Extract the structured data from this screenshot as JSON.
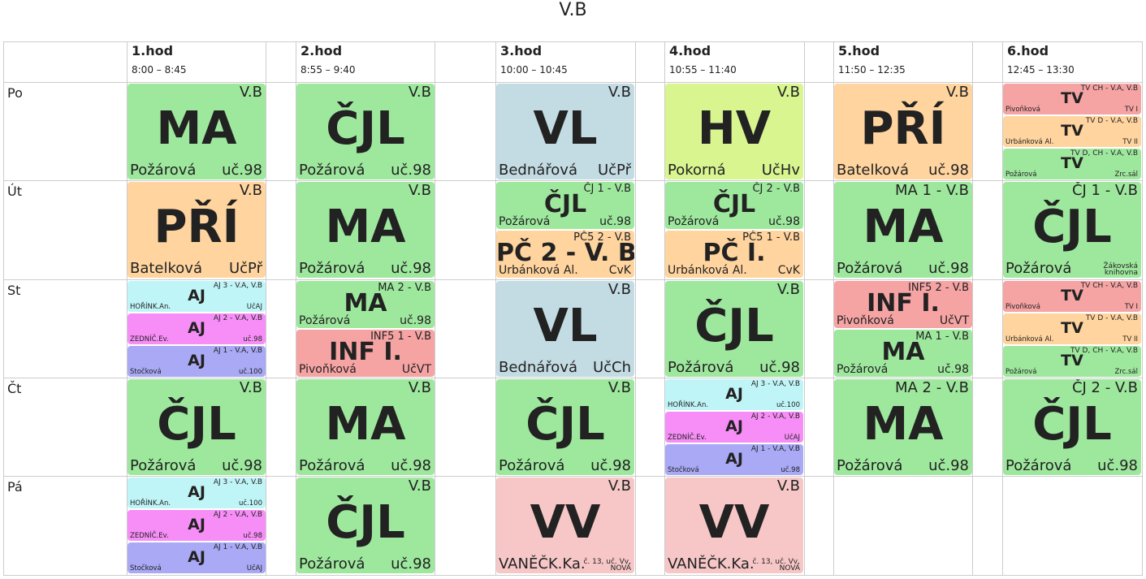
{
  "title": "V.B",
  "hours": [
    {
      "label": "1.hod",
      "time": "8:00 – 8:45"
    },
    {
      "label": "2.hod",
      "time": "8:55 – 9:40"
    },
    {
      "label": "3.hod",
      "time": "10:00 – 10:45"
    },
    {
      "label": "4.hod",
      "time": "10:55 – 11:40"
    },
    {
      "label": "5.hod",
      "time": "11:50 – 12:35"
    },
    {
      "label": "6.hod",
      "time": "12:45 – 13:30"
    }
  ],
  "days": [
    {
      "name": "Po",
      "lessons": [
        [
          {
            "subject": "MA",
            "group": "V.B",
            "teacher": "Požárová",
            "room": "uč.98",
            "color": "#9ee89e"
          }
        ],
        [
          {
            "subject": "ČJL",
            "group": "V.B",
            "teacher": "Požárová",
            "room": "uč.98",
            "color": "#9ee89e"
          }
        ],
        [
          {
            "subject": "VL",
            "group": "V.B",
            "teacher": "Bednářová",
            "room": "UčPř",
            "color": "#c3dbe3"
          }
        ],
        [
          {
            "subject": "HV",
            "group": "V.B",
            "teacher": "Pokorná",
            "room": "UčHv",
            "color": "#d8f590"
          }
        ],
        [
          {
            "subject": "PŘÍ",
            "group": "V.B",
            "teacher": "Batelková",
            "room": "uč.98",
            "color": "#ffd49e"
          }
        ],
        [
          {
            "subject": "TV",
            "group": "TV CH - V.A, V.B",
            "teacher": "Pivoňková",
            "room": "TV I",
            "color": "#f5a3a3"
          },
          {
            "subject": "TV",
            "group": "TV D - V.A, V.B",
            "teacher": "Urbánková Al.",
            "room": "TV II",
            "color": "#ffd49e"
          },
          {
            "subject": "TV",
            "group": "TV D, CH - V.A, V.B",
            "teacher": "Požárová",
            "room": "Zrc.sál",
            "color": "#9ee89e"
          }
        ]
      ]
    },
    {
      "name": "Út",
      "lessons": [
        [
          {
            "subject": "PŘÍ",
            "group": "V.B",
            "teacher": "Batelková",
            "room": "UčPř",
            "color": "#ffd49e"
          }
        ],
        [
          {
            "subject": "MA",
            "group": "V.B",
            "teacher": "Požárová",
            "room": "uč.98",
            "color": "#9ee89e"
          }
        ],
        [
          {
            "subject": "ČJL",
            "group": "ČJ 1 - V.B",
            "teacher": "Požárová",
            "room": "uč.98",
            "color": "#9ee89e"
          },
          {
            "subject": "PČ 2 - V. B",
            "group": "PČ5 2 - V.B",
            "teacher": "Urbánková Al.",
            "room": "CvK",
            "color": "#ffd49e"
          }
        ],
        [
          {
            "subject": "ČJL",
            "group": "ČJ 2 - V.B",
            "teacher": "Požárová",
            "room": "uč.98",
            "color": "#9ee89e"
          },
          {
            "subject": "PČ I.",
            "group": "PČ5 1 - V.B",
            "teacher": "Urbánková Al.",
            "room": "CvK",
            "color": "#ffd49e"
          }
        ],
        [
          {
            "subject": "MA",
            "group": "MA 1 - V.B",
            "teacher": "Požárová",
            "room": "uč.98",
            "color": "#9ee89e"
          }
        ],
        [
          {
            "subject": "ČJL",
            "group": "ČJ 1 - V.B",
            "teacher": "Požárová",
            "room": "Žákovská knihovna",
            "color": "#9ee89e"
          }
        ]
      ]
    },
    {
      "name": "St",
      "lessons": [
        [
          {
            "subject": "AJ",
            "group": "AJ 3 - V.A, V.B",
            "teacher": "HOŘÍNK.An.",
            "room": "UčAJ",
            "color": "#c0f5f7"
          },
          {
            "subject": "AJ",
            "group": "AJ 2 - V.A, V.B",
            "teacher": "ZEDNÍČ.Ev.",
            "room": "uč.98",
            "color": "#f78ef7"
          },
          {
            "subject": "AJ",
            "group": "AJ 1 - V.A, V.B",
            "teacher": "Stočková",
            "room": "uč.100",
            "color": "#a9a9f5"
          }
        ],
        [
          {
            "subject": "MA",
            "group": "MA 2 - V.B",
            "teacher": "Požárová",
            "room": "uč.98",
            "color": "#9ee89e"
          },
          {
            "subject": "INF I.",
            "group": "INF5 1 - V.B",
            "teacher": "Pivoňková",
            "room": "UčVT",
            "color": "#f5a3a3"
          }
        ],
        [
          {
            "subject": "VL",
            "group": "V.B",
            "teacher": "Bednářová",
            "room": "UčCh",
            "color": "#c3dbe3"
          }
        ],
        [
          {
            "subject": "ČJL",
            "group": "V.B",
            "teacher": "Požárová",
            "room": "uč.98",
            "color": "#9ee89e"
          }
        ],
        [
          {
            "subject": "INF I.",
            "group": "INF5 2 - V.B",
            "teacher": "Pivoňková",
            "room": "UčVT",
            "color": "#f5a3a3"
          },
          {
            "subject": "MA",
            "group": "MA 1 - V.B",
            "teacher": "Požárová",
            "room": "uč.98",
            "color": "#9ee89e"
          }
        ],
        [
          {
            "subject": "TV",
            "group": "TV CH - V.A, V.B",
            "teacher": "Pivoňková",
            "room": "TV I",
            "color": "#f5a3a3"
          },
          {
            "subject": "TV",
            "group": "TV D - V.A, V.B",
            "teacher": "Urbánková Al.",
            "room": "TV II",
            "color": "#ffd49e"
          },
          {
            "subject": "TV",
            "group": "TV D, CH - V.A, V.B",
            "teacher": "Požárová",
            "room": "Zrc.sál",
            "color": "#9ee89e"
          }
        ]
      ]
    },
    {
      "name": "Čt",
      "lessons": [
        [
          {
            "subject": "ČJL",
            "group": "V.B",
            "teacher": "Požárová",
            "room": "uč.98",
            "color": "#9ee89e"
          }
        ],
        [
          {
            "subject": "MA",
            "group": "V.B",
            "teacher": "Požárová",
            "room": "uč.98",
            "color": "#9ee89e"
          }
        ],
        [
          {
            "subject": "ČJL",
            "group": "V.B",
            "teacher": "Požárová",
            "room": "uč.98",
            "color": "#9ee89e"
          }
        ],
        [
          {
            "subject": "AJ",
            "group": "AJ 3 - V.A, V.B",
            "teacher": "HOŘÍNK.An.",
            "room": "uč.100",
            "color": "#c0f5f7"
          },
          {
            "subject": "AJ",
            "group": "AJ 2 - V.A, V.B",
            "teacher": "ZEDNÍČ.Ev.",
            "room": "UčAJ",
            "color": "#f78ef7"
          },
          {
            "subject": "AJ",
            "group": "AJ 1 - V.A, V.B",
            "teacher": "Stočková",
            "room": "uč.98",
            "color": "#a9a9f5"
          }
        ],
        [
          {
            "subject": "MA",
            "group": "MA 2 - V.B",
            "teacher": "Požárová",
            "room": "uč.98",
            "color": "#9ee89e"
          }
        ],
        [
          {
            "subject": "ČJL",
            "group": "ČJ 2 - V.B",
            "teacher": "Požárová",
            "room": "uč.98",
            "color": "#9ee89e"
          }
        ]
      ]
    },
    {
      "name": "Pá",
      "lessons": [
        [
          {
            "subject": "AJ",
            "group": "AJ 3 - V.A, V.B",
            "teacher": "HOŘÍNK.An.",
            "room": "uč.100",
            "color": "#c0f5f7"
          },
          {
            "subject": "AJ",
            "group": "AJ 2 - V.A, V.B",
            "teacher": "ZEDNÍČ.Ev.",
            "room": "uč.98",
            "color": "#f78ef7"
          },
          {
            "subject": "AJ",
            "group": "AJ 1 - V.A, V.B",
            "teacher": "Stočková",
            "room": "UčAJ",
            "color": "#a9a9f5"
          }
        ],
        [
          {
            "subject": "ČJL",
            "group": "V.B",
            "teacher": "Požárová",
            "room": "uč.98",
            "color": "#9ee89e"
          }
        ],
        [
          {
            "subject": "VV",
            "group": "V.B",
            "teacher": "VANĚČK.Ka.",
            "room": "č. 13, uč. Vv, NOVÁ",
            "color": "#f7c7c7"
          }
        ],
        [
          {
            "subject": "VV",
            "group": "V.B",
            "teacher": "VANĚČK.Ka.",
            "room": "č. 13, uč. Vv, NOVÁ",
            "color": "#f7c7c7"
          }
        ],
        [],
        []
      ]
    }
  ]
}
